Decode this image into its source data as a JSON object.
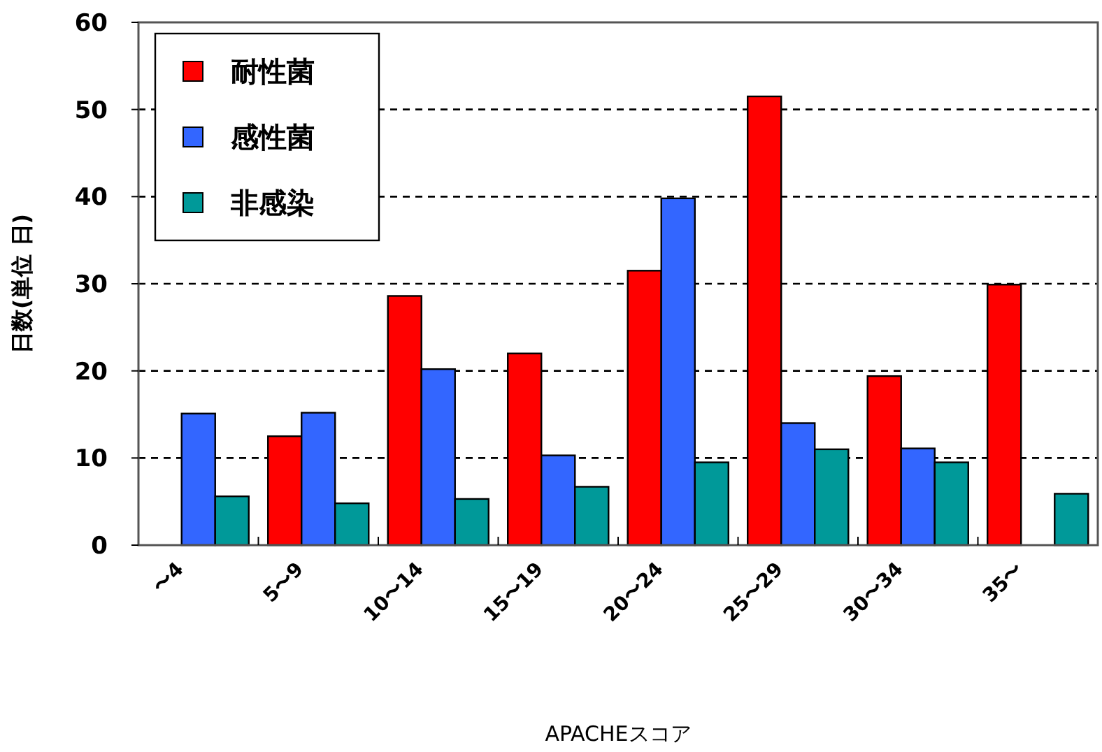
{
  "chart_data": {
    "type": "bar",
    "xlabel": "APACHEスコア",
    "ylabel": "日数(単位 日)",
    "categories": [
      "〜4",
      "5〜9",
      "10〜14",
      "15〜19",
      "20〜24",
      "25〜29",
      "30〜34",
      "35〜"
    ],
    "series": [
      {
        "name": "耐性菌",
        "color": "#ff0000",
        "values": [
          null,
          12.5,
          28.6,
          22,
          31.5,
          51.5,
          19.4,
          29.9
        ]
      },
      {
        "name": "感性菌",
        "color": "#3366ff",
        "values": [
          15.1,
          15.2,
          20.2,
          10.3,
          39.8,
          14,
          11.1,
          null
        ]
      },
      {
        "name": "非感染",
        "color": "#009999",
        "values": [
          5.6,
          4.8,
          5.3,
          6.7,
          9.5,
          11,
          9.5,
          5.9
        ]
      }
    ],
    "ylim": [
      0,
      60
    ],
    "yticks": [
      0,
      10,
      20,
      30,
      40,
      50,
      60
    ],
    "grid": "y",
    "legend": "top left"
  }
}
